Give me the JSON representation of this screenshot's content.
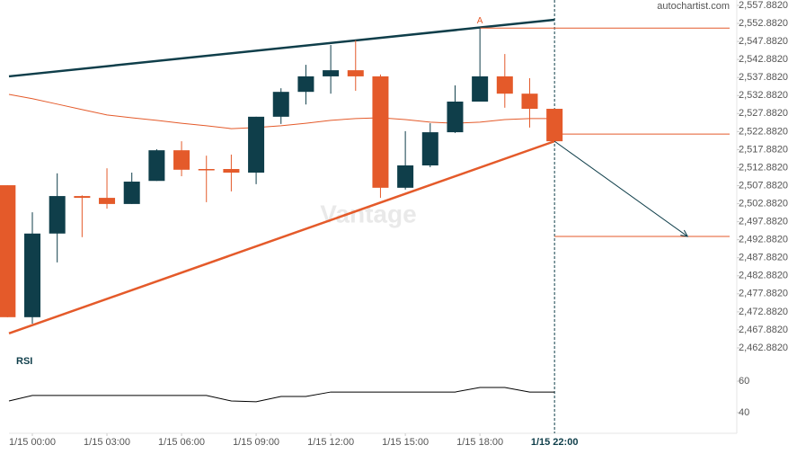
{
  "brand": "autochartist.com",
  "watermark": "Vantage",
  "chart_data": [
    {
      "type": "candlestick",
      "up_color": "#0f3e4a",
      "down_color": "#e45a2a",
      "x": [
        -1,
        0,
        1,
        2,
        3,
        4,
        5,
        6,
        7,
        8,
        9,
        10,
        11,
        12,
        13,
        14,
        15,
        16,
        17,
        18,
        19,
        20,
        21
      ],
      "open": [
        2508.0,
        2471.4,
        2494.6,
        2505.0,
        2504.5,
        2502.8,
        2509.2,
        2517.7,
        2512.5,
        2512.5,
        2511.5,
        2527.0,
        2533.9,
        2538.2,
        2539.9,
        2538.2,
        2507.3,
        2513.5,
        2522.7,
        2531.2,
        2538.2,
        2533.4,
        2529.2
      ],
      "high": [
        2508.0,
        2500.5,
        2511.3,
        2505.2,
        2512.7,
        2511.5,
        2518.0,
        2520.2,
        2516.2,
        2516.5,
        2527.0,
        2534.9,
        2541.4,
        2546.9,
        2548.2,
        2538.7,
        2523.0,
        2525.2,
        2535.7,
        2551.6,
        2544.4,
        2537.7,
        2529.2
      ],
      "low": [
        2471.4,
        2469.6,
        2486.6,
        2493.6,
        2501.5,
        2502.8,
        2509.2,
        2510.5,
        2503.3,
        2506.3,
        2508.3,
        2525.0,
        2530.4,
        2533.4,
        2534.2,
        2504.5,
        2506.8,
        2513.0,
        2522.5,
        2531.2,
        2529.5,
        2524.0,
        2520.2
      ],
      "close": [
        2471.4,
        2494.6,
        2505.0,
        2504.5,
        2502.8,
        2509.0,
        2517.7,
        2512.3,
        2512.3,
        2511.5,
        2527.0,
        2533.9,
        2538.2,
        2539.9,
        2538.2,
        2507.3,
        2513.5,
        2522.7,
        2531.2,
        2538.2,
        2533.4,
        2529.2,
        2520.2
      ],
      "moving_average": {
        "color": "#e45a2a",
        "x": [
          -0.94,
          0,
          1,
          2,
          3,
          4,
          5,
          6,
          7,
          8,
          9,
          10,
          11,
          12,
          13,
          14,
          15,
          16,
          17,
          18,
          19,
          20,
          21
        ],
        "values": [
          2533.2,
          2532.0,
          2530.5,
          2529.0,
          2527.5,
          2526.7,
          2526.0,
          2525.2,
          2524.5,
          2523.7,
          2524.0,
          2524.5,
          2525.2,
          2526.0,
          2526.5,
          2526.7,
          2526.2,
          2525.5,
          2525.2,
          2525.5,
          2526.2,
          2526.5,
          2526.5
        ]
      },
      "trendlines": [
        {
          "color": "#0f3e4a",
          "x": [
            -0.94,
            21
          ],
          "values": [
            2538.2,
            2553.9
          ]
        },
        {
          "color": "#e45a2a",
          "x": [
            -0.94,
            21
          ],
          "values": [
            2466.9,
            2520.2
          ]
        }
      ],
      "levels": [
        {
          "color": "#e45a2a",
          "from": 18,
          "value": 2551.6
        },
        {
          "color": "#e45a2a",
          "from": 21,
          "value": 2522.2
        },
        {
          "color": "#e45a2a",
          "from": 21,
          "value": 2493.8
        }
      ],
      "arrow": {
        "color": "#0f3e4a",
        "x": [
          21,
          26.35
        ],
        "values": [
          2520.2,
          2493.8
        ]
      },
      "annotation": {
        "text": "A",
        "x": 18,
        "value": 2553.5
      },
      "xlim": [
        -0.94,
        28.33
      ],
      "ylim": [
        2461.63,
        2559.38
      ],
      "xticks": [
        {
          "value": 0,
          "label": "1/15 00:00"
        },
        {
          "value": 3,
          "label": "1/15 03:00"
        },
        {
          "value": 6,
          "label": "1/15 06:00"
        },
        {
          "value": 9,
          "label": "1/15 09:00"
        },
        {
          "value": 12,
          "label": "1/15 12:00"
        },
        {
          "value": 15,
          "label": "1/15 15:00"
        },
        {
          "value": 18,
          "label": "1/15 18:00"
        }
      ],
      "current_time": {
        "value": 21,
        "label": "1/15 22:00"
      },
      "yticks": [
        {
          "value": 2462.882,
          "label": "2,462.8820"
        },
        {
          "value": 2467.882,
          "label": "2,467.8820"
        },
        {
          "value": 2472.882,
          "label": "2,472.8820"
        },
        {
          "value": 2477.882,
          "label": "2,477.8820"
        },
        {
          "value": 2482.882,
          "label": "2,482.8820"
        },
        {
          "value": 2487.882,
          "label": "2,487.8820"
        },
        {
          "value": 2492.882,
          "label": "2,492.8820"
        },
        {
          "value": 2497.882,
          "label": "2,497.8820"
        },
        {
          "value": 2502.882,
          "label": "2,502.8820"
        },
        {
          "value": 2507.882,
          "label": "2,507.8820"
        },
        {
          "value": 2512.882,
          "label": "2,512.8820"
        },
        {
          "value": 2517.882,
          "label": "2,517.8820"
        },
        {
          "value": 2522.882,
          "label": "2,522.8820"
        },
        {
          "value": 2527.882,
          "label": "2,527.8820"
        },
        {
          "value": 2532.882,
          "label": "2,532.8820"
        },
        {
          "value": 2537.882,
          "label": "2,537.8820"
        },
        {
          "value": 2542.882,
          "label": "2,542.8820"
        },
        {
          "value": 2547.882,
          "label": "2,547.8820"
        },
        {
          "value": 2552.882,
          "label": "2,552.8820"
        },
        {
          "value": 2557.882,
          "label": "2,557.8820"
        }
      ]
    },
    {
      "type": "line",
      "title": "RSI",
      "color": "#000000",
      "xlim": [
        -0.94,
        28.33
      ],
      "ylim": [
        29.1,
        76.6
      ],
      "yticks": [
        40,
        60
      ],
      "x": [
        -0.94,
        0,
        1,
        2,
        3,
        4,
        5,
        6,
        7,
        8,
        9,
        10,
        11,
        12,
        13,
        14,
        15,
        16,
        17,
        18,
        19,
        20,
        21
      ],
      "values": [
        47.4,
        50.9,
        50.9,
        50.9,
        50.9,
        50.9,
        50.9,
        50.9,
        50.9,
        47.4,
        46.9,
        50.3,
        50.3,
        53.1,
        53.1,
        53.1,
        53.1,
        53.1,
        53.1,
        56.0,
        56.0,
        53.1,
        53.1
      ]
    }
  ]
}
